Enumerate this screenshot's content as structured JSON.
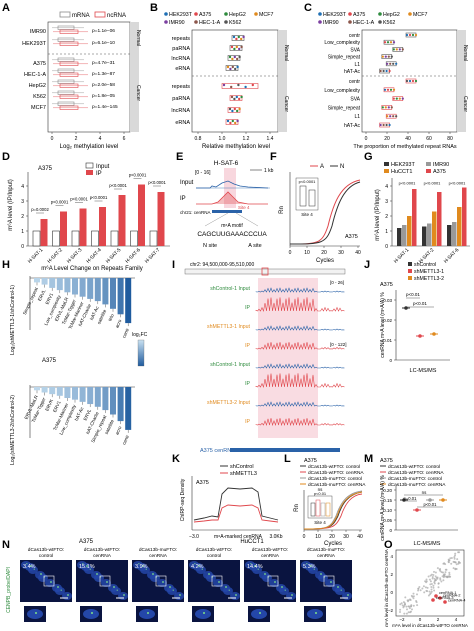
{
  "panel_letters": [
    "A",
    "B",
    "C",
    "D",
    "E",
    "F",
    "G",
    "H",
    "I",
    "J",
    "K",
    "L",
    "M",
    "N",
    "O"
  ],
  "colors": {
    "mrna": "#8a8a8a",
    "ncrna": "#e0474c",
    "input_bar": "#ffffff",
    "ip_bar": "#e0474c",
    "green": "#2e8b3d",
    "orange": "#e08a1e",
    "blue": "#2a62a8",
    "pink_band": "#f6cdd6",
    "heat_dark": "#1f5b9e",
    "heat_light": "#c9e1f1"
  },
  "panelA": {
    "legend": [
      "mRNA",
      "ncRNA"
    ],
    "rows": [
      "IMR90",
      "HEK293T",
      "A375",
      "HEC-1-A",
      "HepG2",
      "K562",
      "MCF7"
    ],
    "pvals": [
      "p=1.1e−06",
      "p=6.1e−10",
      "p=4.7e−31",
      "p=1.3e−87",
      "p=2.0e−58",
      "p=1.8e−05",
      "p=1.4e−145"
    ],
    "groups": [
      "Normal",
      "Cancer"
    ],
    "xlabel": "Log₂ methylation level",
    "ticks": [
      "0",
      "2",
      "4",
      "6"
    ]
  },
  "panelB": {
    "legend": [
      "HEK293T",
      "A375",
      "HepG2",
      "MCF7",
      "IMR90",
      "HEC-1-A",
      "K562"
    ],
    "rows": [
      "repeats",
      "paRNA",
      "lncRNA",
      "eRNA",
      "repeats",
      "paRNA",
      "lncRNA",
      "eRNA"
    ],
    "groups": [
      "Normal",
      "Cancer"
    ],
    "xlabel": "Relative methylation level",
    "ticks": [
      "0.8",
      "1.0",
      "1.2",
      "1.4"
    ]
  },
  "panelC": {
    "legend": [
      "HEK293T",
      "A375",
      "HepG2",
      "MCF7",
      "IMR90",
      "HEC-1-A",
      "K562"
    ],
    "rows": [
      "centr",
      "Low_complexity",
      "SVA",
      "Simple_repeat",
      "L1",
      "hAT-Ac",
      "centr",
      "Low_complexity",
      "SVA",
      "Simple_repeat",
      "L1",
      "hAT-Ac"
    ],
    "groups": [
      "Normal",
      "Cancer"
    ],
    "xlabel": "The proportion of methylated repeat RNAs",
    "ticks": [
      "0",
      "20",
      "40",
      "60",
      "80"
    ]
  },
  "panelD": {
    "cell": "A375",
    "legend": [
      "Input",
      "IP"
    ],
    "ylabel": "m⁶A level (IP/Input)",
    "categories": [
      "H-SAT-1",
      "H-SAT-2",
      "H-SAT-3",
      "H-SAT-4",
      "H-SAT-5",
      "H-SAT-6",
      "H-SAT-7"
    ],
    "pvals": [
      "p=0.0002",
      "p<0.0001",
      "p<0.0001",
      "p<0.0001",
      "p<0.0001",
      "p<0.0001",
      "p<0.0001"
    ],
    "ticks": [
      "0",
      "1",
      "2",
      "3",
      "4"
    ]
  },
  "panelE": {
    "title": "H-SAT-6",
    "range": "[0 - 16]",
    "scale": "1 kb",
    "tracks": [
      "Input",
      "IP"
    ],
    "chrom": "chr21: cenRNA",
    "site": "Site 4",
    "motif_label": "m⁶A motif",
    "sequence": "CAGCUUGAAACCCUA",
    "site_labels": [
      "N site",
      "A site"
    ]
  },
  "panelF": {
    "legend": [
      "A",
      "N"
    ],
    "ylabel": "Rn",
    "xlabel": "Cycles",
    "inset_ylabel": "Cycles",
    "inset_label": "Site 4",
    "pval": "p<0.0001",
    "cell": "A375",
    "xticks": [
      "0",
      "10",
      "20",
      "30",
      "40"
    ]
  },
  "panelG": {
    "legend": [
      "HEK293T",
      "IMR90",
      "HuCCT1",
      "A375"
    ],
    "ylabel": "m⁶A level (IP/Input)",
    "categories": [
      "H-SAT-1",
      "H-SAT-2",
      "H-SAT-6"
    ],
    "ticks": [
      "0",
      "1",
      "2",
      "3",
      "4"
    ],
    "pvals": [
      "p<0.0001",
      "p<0.0001",
      "p<0.0001"
    ]
  },
  "panelH": {
    "title": "m⁶A Level Change on Repeats Family",
    "ylabel_top": "Log₂(shMETTL3-1/shControl-1)",
    "ylabel_bottom": "Log₂(shMETTL3-2/shControl-2)",
    "cell": "A375",
    "legend_title": "log₂FC",
    "labels_top": [
      "Simple_repeat",
      "ERVL",
      "ERV1",
      "Low_complexity",
      "ERVL-MaLR",
      "TcMar-Tigger",
      "TcMar-Mariner",
      "hAT-Charlie",
      "hAT-Ac",
      "satellite",
      "telo",
      "acro",
      "centr"
    ],
    "labels_bottom": [
      "ERVL-MaLR",
      "TcMar-Tigger",
      "ERVK",
      "ERV1",
      "TcMar-Mariner",
      "Low_complexity",
      "hAT-Ac",
      "ERVL",
      "hAT-Charlie",
      "Simple_repeat",
      "satellite",
      "acro",
      "centr"
    ],
    "values_top": [
      -0.08,
      -0.12,
      -0.18,
      -0.22,
      -0.26,
      -0.3,
      -0.34,
      -0.38,
      -0.42,
      -0.48,
      -0.56,
      -0.66,
      -0.82
    ],
    "values_bottom": [
      -0.06,
      -0.1,
      -0.13,
      -0.16,
      -0.2,
      -0.23,
      -0.27,
      -0.31,
      -0.36,
      -0.42,
      -0.5,
      -0.62,
      -0.78
    ]
  },
  "panelI": {
    "coords": "chr2: 94,500,000-95,510,000",
    "range1": "[0 - 26]",
    "range2": "[0 - 122]",
    "tracks": [
      "shControl-1  Input",
      "IP",
      "shMETTL3-1  Input",
      "IP",
      "shControl-1  Input",
      "IP",
      "shMETTL3-2  Input",
      "IP"
    ],
    "footer": "A375  cenRNA"
  },
  "panelJ": {
    "legend": [
      "shControl",
      "shMETTL3-1",
      "shMETTL3-2"
    ],
    "cell": "A375",
    "ylabel": "cenRNA m⁶A level (m⁶A/A) %",
    "xlabel": "LC-MS/MS",
    "pvals": [
      "p<0.01",
      "p<0.01"
    ],
    "ticks": [
      "0",
      "0.01",
      "0.02",
      "0.03"
    ],
    "values": [
      0.026,
      0.012,
      0.013
    ]
  },
  "panelK": {
    "legend": [
      "shControl",
      "shMETTL3"
    ],
    "cell": "A375",
    "ylabel": "ChIRP-seq Density",
    "xticks": [
      "−3.0",
      "m⁶A-marked cenRNA",
      "3.0Kb"
    ]
  },
  "panelL": {
    "cell": "A375",
    "legend": [
      "dCas13b-wtFTO: control",
      "dCas13b-wtFTO: cenRNA",
      "dCas13b-muFTO: control",
      "dCas13b-muFTO: cenRNA"
    ],
    "ylabel": "Rn",
    "xlabel": "Cycles",
    "inset_label": "Site 4",
    "ns": "ns",
    "pval": "p<0.01",
    "xticks": [
      "0",
      "10",
      "20",
      "30",
      "40"
    ]
  },
  "panelM": {
    "cell": "A375",
    "legend": [
      "dCas13b-wtFTO: control",
      "dCas13b-wtFTO: cenRNA",
      "dCas13b-muFTO: control",
      "dCas13b-muFTO: cenRNA"
    ],
    "ylabel": "cenRNA m⁶A level (m⁶A/A) %",
    "xlabel": "LC-MS/MS",
    "ns": "ns",
    "pvals": [
      "p=0.01",
      "p<0.01"
    ],
    "ticks": [
      "0",
      "0.05",
      "0.10",
      "0.15",
      "0.20"
    ],
    "values": [
      0.15,
      0.1,
      0.15,
      0.15
    ]
  },
  "panelN": {
    "ylabel": "CENPB_probe/DAPI",
    "groups": [
      "A375",
      "HuCCT1"
    ],
    "labels": [
      "dCas13b-wtFTO:\ncontrol",
      "dCas13b-wtFTO:\ncenRNA",
      "dCas13b-muFTO:\ncenRNA",
      "dCas13b-wtFTO:\ncontrol",
      "dCas13b-wtFTO:\ncenRNA",
      "dCas13b-muFTO:\ncenRNA"
    ],
    "percents": [
      "3.4%",
      "15.1%",
      "3.9%",
      "4.2%",
      "14.4%",
      "5.3%"
    ]
  },
  "panelO": {
    "ylabel": "m⁶A level in dCas13b-muFTO cenRNA",
    "xlabel": "m⁶A level in dCas13b-wtFTO cenRNA",
    "labels": [
      "cenRNA-1",
      "cenRNA-2",
      "cenRNA-3",
      "cenRNA-4"
    ],
    "ticks": [
      "−2",
      "0",
      "2",
      "4"
    ]
  }
}
